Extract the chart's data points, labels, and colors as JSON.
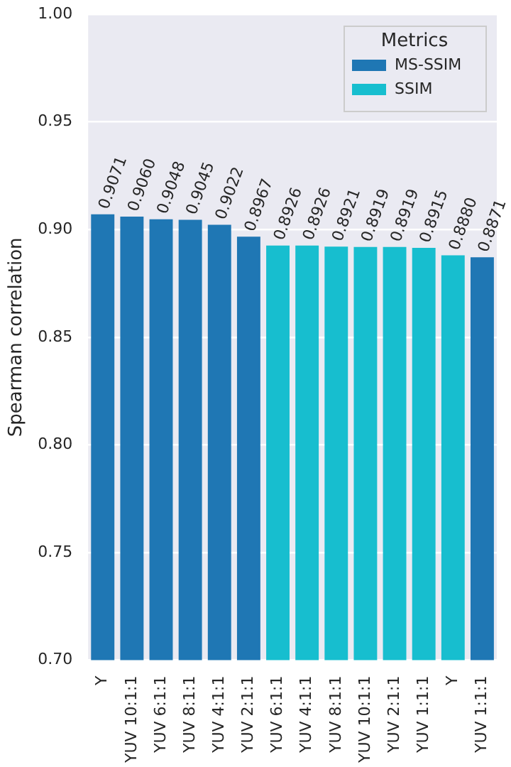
{
  "chart_data": {
    "type": "bar",
    "ylabel": "Spearman correlation",
    "legend_title": "Metrics",
    "legend": "top right",
    "grid": "y",
    "categories": [
      "Y",
      "YUV 10:1:1",
      "YUV 6:1:1",
      "YUV 8:1:1",
      "YUV 4:1:1",
      "YUV 2:1:1",
      "YUV 6:1:1",
      "YUV 4:1:1",
      "YUV 8:1:1",
      "YUV 10:1:1",
      "YUV 2:1:1",
      "YUV 1:1:1",
      "Y",
      "YUV 1:1:1"
    ],
    "series": [
      {
        "name": "MS-SSIM",
        "color": "#1f77b4",
        "values": [
          0.9071,
          0.906,
          0.9048,
          0.9045,
          0.9022,
          0.8967,
          null,
          null,
          null,
          null,
          null,
          null,
          null,
          0.8871
        ],
        "value_labels": [
          "0.9071",
          "0.9060",
          "0.9048",
          "0.9045",
          "0.9022",
          "0.8967",
          null,
          null,
          null,
          null,
          null,
          null,
          null,
          "0.8871"
        ]
      },
      {
        "name": "SSIM",
        "color": "#17becf",
        "values": [
          null,
          null,
          null,
          null,
          null,
          null,
          0.8926,
          0.8926,
          0.8921,
          0.8919,
          0.8919,
          0.8915,
          0.888,
          null
        ],
        "value_labels": [
          null,
          null,
          null,
          null,
          null,
          null,
          "0.8926",
          "0.8926",
          "0.8921",
          "0.8919",
          "0.8919",
          "0.8915",
          "0.8880",
          null
        ]
      }
    ],
    "ylim": [
      0.7,
      1.0
    ],
    "yticks": [
      {
        "value": 0.7,
        "label": "0.70"
      },
      0.75,
      {
        "value": 0.8,
        "label": "0.80"
      },
      0.85,
      {
        "value": 0.9,
        "label": "0.90"
      },
      0.95,
      {
        "value": 1.0,
        "label": "1.00"
      }
    ]
  }
}
